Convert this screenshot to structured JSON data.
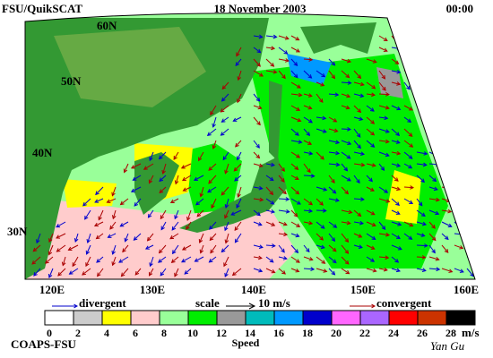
{
  "header": {
    "product": "FSU/QuikSCAT",
    "date": "18 November 2003",
    "time": "00:00"
  },
  "map": {
    "lat_labels": [
      "60N",
      "50N",
      "40N",
      "30N"
    ],
    "lon_labels": [
      "120E",
      "130E",
      "140E",
      "150E",
      "160E"
    ]
  },
  "legend": {
    "divergent": "divergent",
    "scale": "scale",
    "scale_value": "10 m/s",
    "convergent": "convergent",
    "divergent_color": "#0000cc",
    "convergent_color": "#aa0000"
  },
  "colorbar": {
    "ticks": [
      0,
      2,
      4,
      6,
      8,
      10,
      12,
      14,
      16,
      18,
      20,
      22,
      24,
      26,
      28
    ],
    "unit": "m/s",
    "label": "Speed",
    "colors": [
      "#ffffff",
      "#cccccc",
      "#ffff00",
      "#ffcccc",
      "#99ff99",
      "#00ee00",
      "#999999",
      "#00bbbb",
      "#0099ff",
      "#0000cc",
      "#ff66ff",
      "#aa66ff",
      "#ff0000",
      "#cc3300",
      "#000000"
    ]
  },
  "footer": {
    "left": "COAPS-FSU",
    "right": "Yan Gu"
  }
}
